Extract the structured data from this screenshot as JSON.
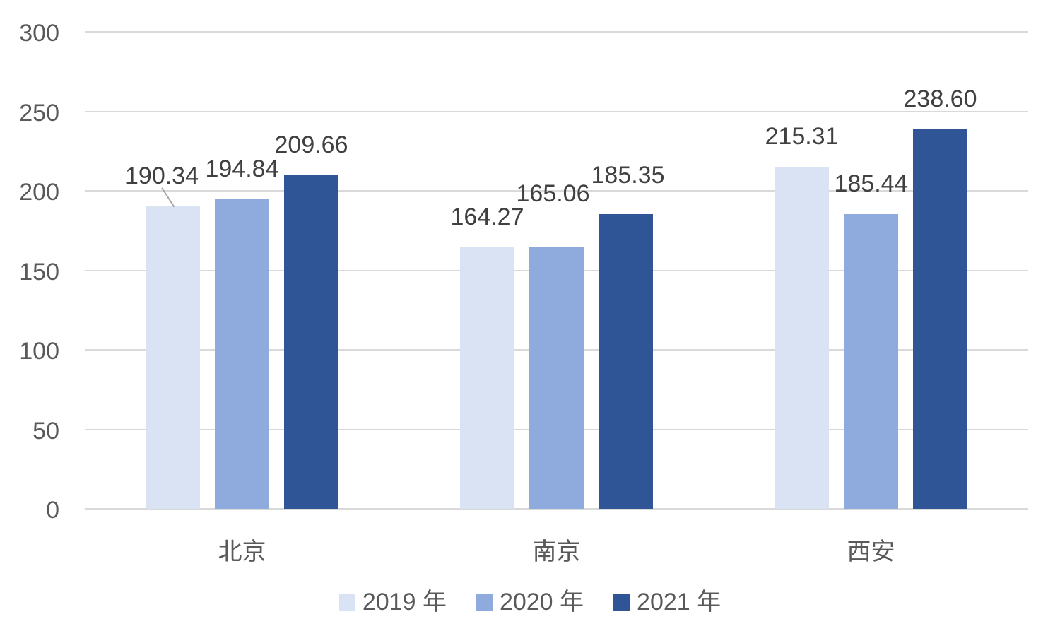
{
  "chart_data": {
    "type": "bar",
    "title": "",
    "xlabel": "",
    "ylabel": "",
    "categories": [
      "北京",
      "南京",
      "西安"
    ],
    "series": [
      {
        "name": "2019 年",
        "color": "#dae3f3",
        "values": [
          190.34,
          164.27,
          215.31
        ]
      },
      {
        "name": "2020 年",
        "color": "#8faadc",
        "values": [
          194.84,
          165.06,
          185.44
        ]
      },
      {
        "name": "2021 年",
        "color": "#2f5597",
        "values": [
          209.66,
          185.35,
          238.6
        ]
      }
    ],
    "data_labels": [
      "190.34",
      "194.84",
      "209.66",
      "164.27",
      "165.06",
      "185.35",
      "215.31",
      "185.44",
      "238.60"
    ],
    "data_label_decimals": 2,
    "y_ticks": [
      0,
      50,
      100,
      150,
      200,
      250,
      300
    ],
    "ylim": [
      0,
      300
    ],
    "grid": "horizontal",
    "legend_position": "bottom",
    "colors": {
      "grid": "#d9d9d9",
      "axis_text": "#595959",
      "data_label_text": "#404040",
      "leader_line": "#a6a6a6",
      "background": "#ffffff"
    }
  }
}
